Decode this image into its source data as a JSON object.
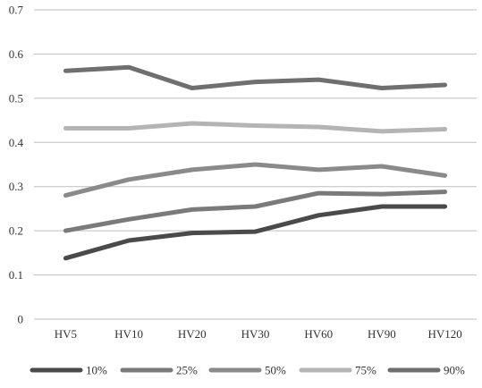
{
  "chart_data": {
    "type": "line",
    "categories": [
      "HV5",
      "HV10",
      "HV20",
      "HV30",
      "HV60",
      "HV90",
      "HV120"
    ],
    "ylim": [
      0,
      0.7
    ],
    "yticks": [
      0,
      0.1,
      0.2,
      0.3,
      0.4,
      0.5,
      0.6,
      0.7
    ],
    "ytick_labels": [
      "0",
      "0.1",
      "0.2",
      "0.3",
      "0.4",
      "0.5",
      "0.6",
      "0.7"
    ],
    "grid": "horizontal",
    "legend_position": "bottom",
    "series": [
      {
        "name": "10%",
        "color": "#4a4a4a",
        "values": [
          0.138,
          0.178,
          0.195,
          0.198,
          0.235,
          0.255,
          0.255
        ]
      },
      {
        "name": "25%",
        "color": "#7a7a7a",
        "values": [
          0.2,
          0.226,
          0.248,
          0.255,
          0.285,
          0.283,
          0.288
        ]
      },
      {
        "name": "50%",
        "color": "#8a8a8a",
        "values": [
          0.28,
          0.316,
          0.338,
          0.35,
          0.338,
          0.346,
          0.325
        ]
      },
      {
        "name": "75%",
        "color": "#b4b4b4",
        "values": [
          0.432,
          0.432,
          0.443,
          0.438,
          0.435,
          0.425,
          0.43
        ]
      },
      {
        "name": "90%",
        "color": "#6f6f6f",
        "values": [
          0.562,
          0.57,
          0.523,
          0.537,
          0.542,
          0.523,
          0.53
        ]
      }
    ]
  }
}
